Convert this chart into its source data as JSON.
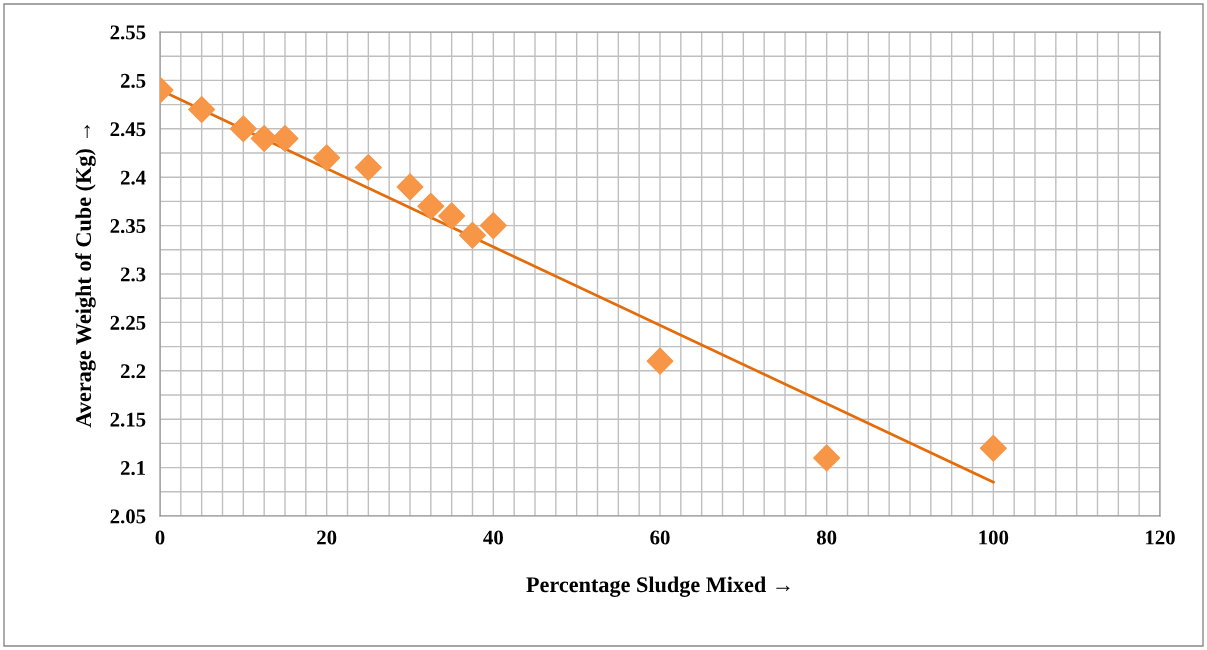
{
  "chart_data": {
    "type": "scatter",
    "xlabel": "Percentage Sludge Mixed →",
    "ylabel": "Average Weight of Cube (Kg) →",
    "xlim": [
      0,
      120
    ],
    "ylim": [
      2.05,
      2.55
    ],
    "xticks": [
      0,
      {
        "value": 2.5,
        "label": null
      },
      {
        "value": 5,
        "label": null
      },
      {
        "value": 7.5,
        "label": null
      },
      {
        "value": 10,
        "label": null
      },
      {
        "value": 12.5,
        "label": null
      },
      {
        "value": 15,
        "label": null
      },
      {
        "value": 17.5,
        "label": null
      },
      20,
      {
        "value": 22.5,
        "label": null
      },
      {
        "value": 25,
        "label": null
      },
      {
        "value": 27.5,
        "label": null
      },
      {
        "value": 30,
        "label": null
      },
      {
        "value": 32.5,
        "label": null
      },
      {
        "value": 35,
        "label": null
      },
      {
        "value": 37.5,
        "label": null
      },
      40,
      {
        "value": 42.5,
        "label": null
      },
      {
        "value": 45,
        "label": null
      },
      {
        "value": 47.5,
        "label": null
      },
      {
        "value": 50,
        "label": null
      },
      {
        "value": 52.5,
        "label": null
      },
      {
        "value": 55,
        "label": null
      },
      {
        "value": 57.5,
        "label": null
      },
      60,
      {
        "value": 62.5,
        "label": null
      },
      {
        "value": 65,
        "label": null
      },
      {
        "value": 67.5,
        "label": null
      },
      {
        "value": 70,
        "label": null
      },
      {
        "value": 72.5,
        "label": null
      },
      {
        "value": 75,
        "label": null
      },
      {
        "value": 77.5,
        "label": null
      },
      80,
      {
        "value": 82.5,
        "label": null
      },
      {
        "value": 85,
        "label": null
      },
      {
        "value": 87.5,
        "label": null
      },
      {
        "value": 90,
        "label": null
      },
      {
        "value": 92.5,
        "label": null
      },
      {
        "value": 95,
        "label": null
      },
      {
        "value": 97.5,
        "label": null
      },
      100,
      {
        "value": 102.5,
        "label": null
      },
      {
        "value": 105,
        "label": null
      },
      {
        "value": 107.5,
        "label": null
      },
      {
        "value": 110,
        "label": null
      },
      {
        "value": 112.5,
        "label": null
      },
      {
        "value": 115,
        "label": null
      },
      {
        "value": 117.5,
        "label": null
      },
      120
    ],
    "yticks": [
      2.05,
      {
        "value": 2.075,
        "label": null
      },
      2.1,
      {
        "value": 2.125,
        "label": null
      },
      2.15,
      {
        "value": 2.175,
        "label": null
      },
      2.2,
      {
        "value": 2.225,
        "label": null
      },
      2.25,
      {
        "value": 2.275,
        "label": null
      },
      2.3,
      {
        "value": 2.325,
        "label": null
      },
      2.35,
      {
        "value": 2.375,
        "label": null
      },
      2.4,
      {
        "value": 2.425,
        "label": null
      },
      2.45,
      {
        "value": 2.475,
        "label": null
      },
      2.5,
      {
        "value": 2.525,
        "label": null
      },
      2.55
    ],
    "grid": true,
    "series": [
      {
        "marker": "diamond",
        "color": "#f79646",
        "x": [
          0,
          5,
          10,
          12.5,
          15,
          20,
          25,
          30,
          32.5,
          35,
          37.5,
          40,
          60,
          80,
          100
        ],
        "values": [
          2.49,
          2.47,
          2.45,
          2.44,
          2.44,
          2.42,
          2.41,
          2.39,
          2.37,
          2.36,
          2.34,
          2.35,
          2.21,
          2.11,
          2.12
        ]
      },
      {
        "type": "line",
        "color": "#e46c0a",
        "x": [
          0,
          100
        ],
        "values": [
          2.49,
          2.085
        ]
      }
    ]
  }
}
